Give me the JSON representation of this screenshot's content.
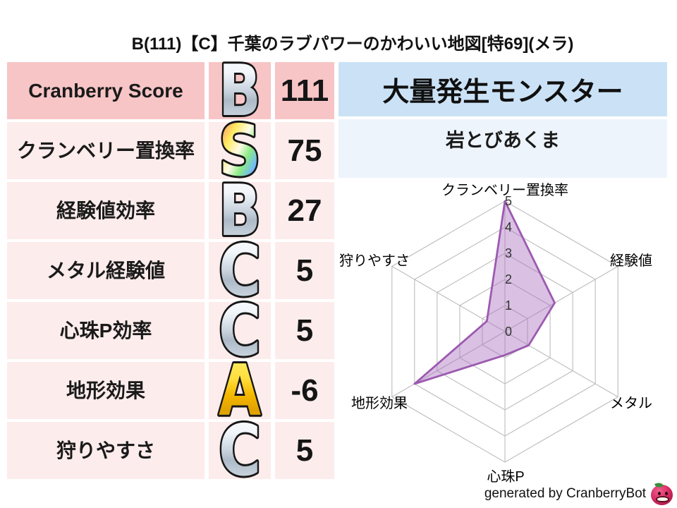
{
  "title": "B(111)【C】千葉のラブパワーのかわいい地図[特69](メラ)",
  "table": {
    "rows": [
      {
        "label": "Cranberry Score",
        "grade": "B",
        "grade_style": "silver",
        "value": "111"
      },
      {
        "label": "クランベリー置換率",
        "grade": "S",
        "grade_style": "rainbow",
        "value": "75"
      },
      {
        "label": "経験値効率",
        "grade": "B",
        "grade_style": "silver",
        "value": "27"
      },
      {
        "label": "メタル経験値",
        "grade": "C",
        "grade_style": "silver",
        "value": "5"
      },
      {
        "label": "心珠P効率",
        "grade": "C",
        "grade_style": "silver",
        "value": "5"
      },
      {
        "label": "地形効果",
        "grade": "A",
        "grade_style": "gold",
        "value": "-6"
      },
      {
        "label": "狩りやすさ",
        "grade": "C",
        "grade_style": "silver",
        "value": "5"
      }
    ]
  },
  "monster_panel": {
    "header": "大量発生モンスター",
    "name": "岩とびあくま"
  },
  "chart_data": {
    "type": "radar",
    "categories": [
      "クランベリー置換率",
      "経験値",
      "メタル",
      "心珠P",
      "地形効果",
      "狩りやすさ"
    ],
    "values": [
      5,
      2.2,
      1.05,
      0.9,
      4.0,
      0.8
    ],
    "scale_ticks": [
      0,
      1,
      2,
      3,
      4,
      5
    ],
    "axis_range": [
      0,
      5
    ],
    "grid_levels": 5,
    "grid_shape": "hexagon",
    "legend": "none",
    "fill_color": "#a66bbe",
    "fill_opacity": 0.42,
    "stroke_color": "#9c5ab0",
    "grid_color": "#bdbdbd"
  },
  "footer": {
    "credit": "generated by CranberryBot",
    "icon": "cranberry-face-icon"
  },
  "colors": {
    "row_primary_bg": "#f7c5c6",
    "row_bg": "#fdecec",
    "monster_header_bg": "#cbe2f6",
    "monster_name_bg": "#edf4fc",
    "grade_gold": "#ffd83c",
    "grade_silver": "#c9d4df",
    "text": "#111111"
  }
}
